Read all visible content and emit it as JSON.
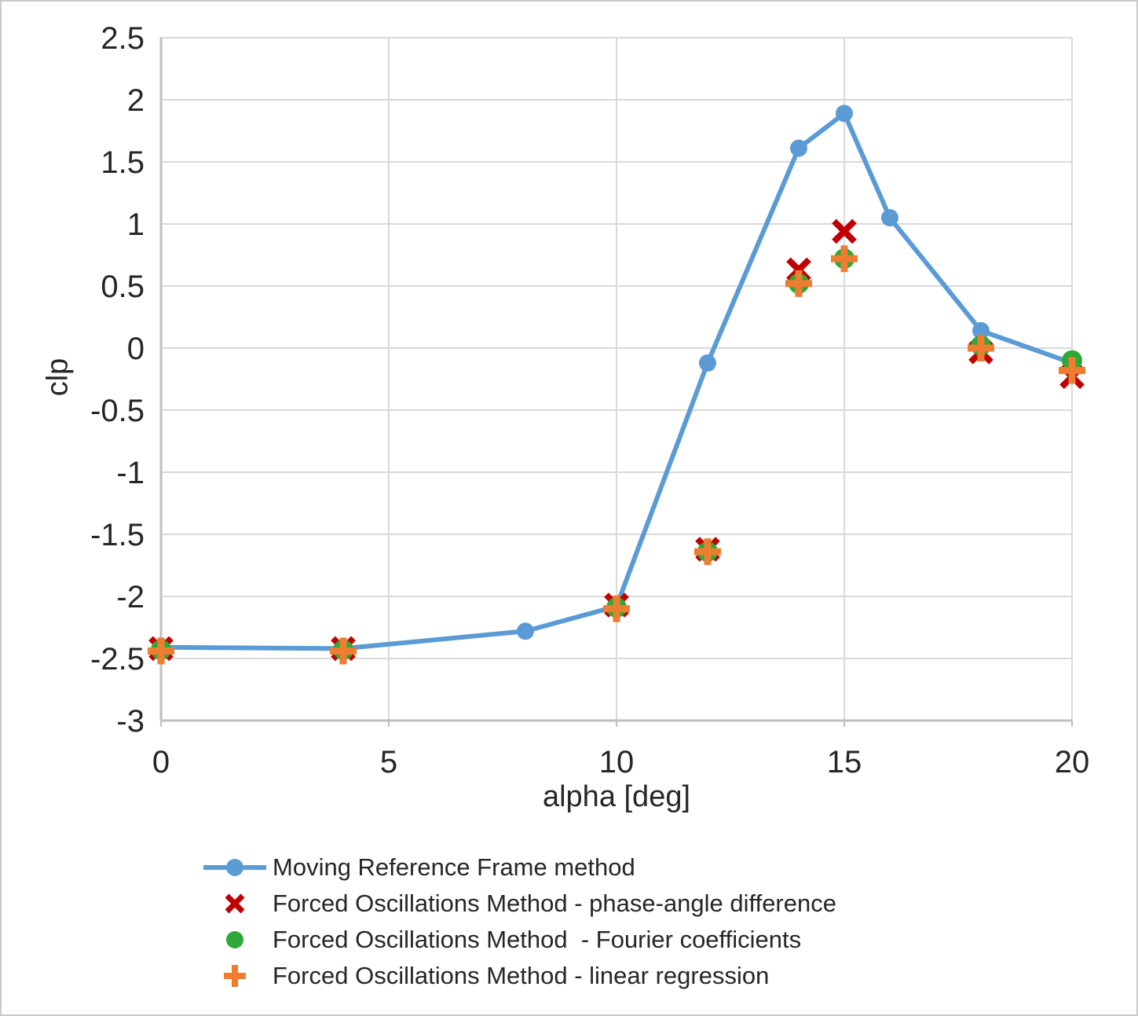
{
  "chart_data": {
    "type": "line",
    "title": "",
    "xlabel": "alpha [deg]",
    "ylabel": "clp",
    "xlim": [
      0,
      20
    ],
    "ylim": [
      -3,
      2.5
    ],
    "x_ticks": [
      0,
      5,
      10,
      15,
      20
    ],
    "y_ticks": [
      2.5,
      2,
      1.5,
      1,
      0.5,
      0,
      -0.5,
      -1,
      -1.5,
      -2,
      -2.5,
      -3
    ],
    "grid": true,
    "legend_position": "bottom-left",
    "grid_color": "#d9d9d9",
    "axis_color": "#bfbfbf",
    "text_color": "#262626",
    "series": [
      {
        "name": "Moving Reference Frame method",
        "type": "line",
        "marker": "circle",
        "color": "#5B9BD5",
        "points": [
          [
            0,
            -2.41
          ],
          [
            4,
            -2.42
          ],
          [
            8,
            -2.28
          ],
          [
            10,
            -2.08
          ],
          [
            12,
            -0.12
          ],
          [
            14,
            1.61
          ],
          [
            15,
            1.89
          ],
          [
            16,
            1.05
          ],
          [
            18,
            0.14
          ],
          [
            20,
            -0.12
          ]
        ]
      },
      {
        "name": "Forced Oscillations Method - phase-angle difference",
        "type": "scatter",
        "marker": "x",
        "color": "#C00000",
        "points": [
          [
            0,
            -2.42
          ],
          [
            4,
            -2.42
          ],
          [
            10,
            -2.07
          ],
          [
            12,
            -1.62
          ],
          [
            14,
            0.63
          ],
          [
            15,
            0.94
          ],
          [
            18,
            -0.03
          ],
          [
            20,
            -0.23
          ]
        ]
      },
      {
        "name": "Forced Oscillations Method  - Fourier coefficients",
        "type": "scatter",
        "marker": "circle",
        "color": "#2EA836",
        "points": [
          [
            0,
            -2.43
          ],
          [
            4,
            -2.43
          ],
          [
            10,
            -2.09
          ],
          [
            12,
            -1.64
          ],
          [
            14,
            0.52
          ],
          [
            15,
            0.72
          ],
          [
            18,
            0.02
          ],
          [
            20,
            -0.1
          ]
        ]
      },
      {
        "name": "Forced Oscillations Method - linear regression",
        "type": "scatter",
        "marker": "plus",
        "color": "#ED7D31",
        "points": [
          [
            0,
            -2.44
          ],
          [
            4,
            -2.44
          ],
          [
            10,
            -2.1
          ],
          [
            12,
            -1.64
          ],
          [
            14,
            0.52
          ],
          [
            15,
            0.72
          ],
          [
            18,
            0.0
          ],
          [
            20,
            -0.18
          ]
        ]
      }
    ]
  }
}
